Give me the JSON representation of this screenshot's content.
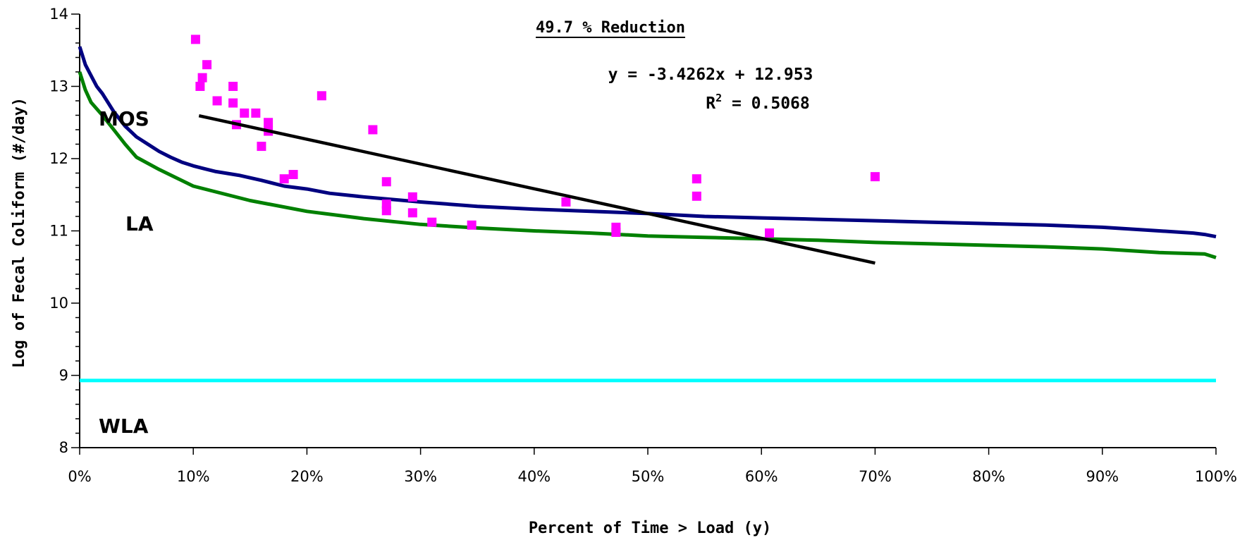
{
  "chart_data": {
    "type": "line",
    "title": "49.7 % Reduction",
    "xlabel": "Percent of Time > Load (y)",
    "ylabel": "Log of Fecal Coliform (#/day)",
    "xlim": [
      0,
      1
    ],
    "ylim": [
      8,
      14
    ],
    "x_ticks": [
      "0%",
      "10%",
      "20%",
      "30%",
      "40%",
      "50%",
      "60%",
      "70%",
      "80%",
      "90%",
      "100%"
    ],
    "y_ticks": [
      "8",
      "9",
      "10",
      "11",
      "12",
      "13",
      "14"
    ],
    "trendline": {
      "equation": "y = -3.4262x + 12.953",
      "r2_prefix": "R",
      "r2_sup": "2",
      "r2_value": " = 0.5068",
      "slope": -3.4262,
      "intercept": 12.953,
      "x_range": [
        0.105,
        0.7
      ],
      "color": "#000000"
    },
    "region_labels": [
      "MOS",
      "LA",
      "WLA"
    ],
    "series": [
      {
        "kind": "line",
        "color": "#000080",
        "x": [
          0,
          0.005,
          0.01,
          0.015,
          0.02,
          0.03,
          0.04,
          0.05,
          0.06,
          0.07,
          0.08,
          0.09,
          0.1,
          0.11,
          0.12,
          0.14,
          0.16,
          0.18,
          0.2,
          0.22,
          0.25,
          0.3,
          0.35,
          0.4,
          0.45,
          0.5,
          0.55,
          0.6,
          0.65,
          0.7,
          0.75,
          0.8,
          0.85,
          0.9,
          0.95,
          0.98,
          0.99,
          1.0
        ],
        "values": [
          13.55,
          13.3,
          13.15,
          13.0,
          12.9,
          12.65,
          12.45,
          12.3,
          12.2,
          12.1,
          12.02,
          11.95,
          11.9,
          11.86,
          11.82,
          11.77,
          11.7,
          11.62,
          11.58,
          11.52,
          11.47,
          11.4,
          11.34,
          11.3,
          11.27,
          11.24,
          11.2,
          11.18,
          11.16,
          11.14,
          11.12,
          11.1,
          11.08,
          11.05,
          11.0,
          10.97,
          10.95,
          10.92
        ]
      },
      {
        "kind": "line",
        "color": "#008000",
        "x": [
          0,
          0.005,
          0.01,
          0.02,
          0.03,
          0.04,
          0.05,
          0.07,
          0.1,
          0.15,
          0.2,
          0.25,
          0.3,
          0.35,
          0.4,
          0.45,
          0.5,
          0.55,
          0.6,
          0.65,
          0.7,
          0.75,
          0.8,
          0.85,
          0.9,
          0.95,
          0.99,
          1.0
        ],
        "values": [
          13.2,
          12.95,
          12.78,
          12.6,
          12.4,
          12.2,
          12.02,
          11.85,
          11.62,
          11.42,
          11.27,
          11.17,
          11.09,
          11.04,
          11.0,
          10.97,
          10.93,
          10.91,
          10.89,
          10.87,
          10.84,
          10.82,
          10.8,
          10.78,
          10.75,
          10.7,
          10.68,
          10.63
        ]
      },
      {
        "kind": "line",
        "color": "#00FFFF",
        "x": [
          0,
          1
        ],
        "values": [
          8.93,
          8.93
        ]
      },
      {
        "kind": "scatter",
        "color": "#FF00FF",
        "x": [
          0.102,
          0.106,
          0.108,
          0.112,
          0.121,
          0.135,
          0.135,
          0.138,
          0.145,
          0.155,
          0.16,
          0.166,
          0.166,
          0.18,
          0.188,
          0.213,
          0.258,
          0.27,
          0.27,
          0.27,
          0.293,
          0.293,
          0.31,
          0.345,
          0.428,
          0.472,
          0.472,
          0.543,
          0.543,
          0.607,
          0.7
        ],
        "values": [
          13.65,
          13.0,
          13.12,
          13.3,
          12.8,
          12.77,
          13.0,
          12.47,
          12.63,
          12.63,
          12.17,
          12.38,
          12.5,
          11.72,
          11.78,
          12.87,
          12.4,
          11.68,
          11.37,
          11.28,
          11.47,
          11.25,
          11.12,
          11.08,
          11.4,
          11.05,
          10.98,
          11.72,
          11.48,
          10.97,
          11.75
        ]
      }
    ]
  }
}
